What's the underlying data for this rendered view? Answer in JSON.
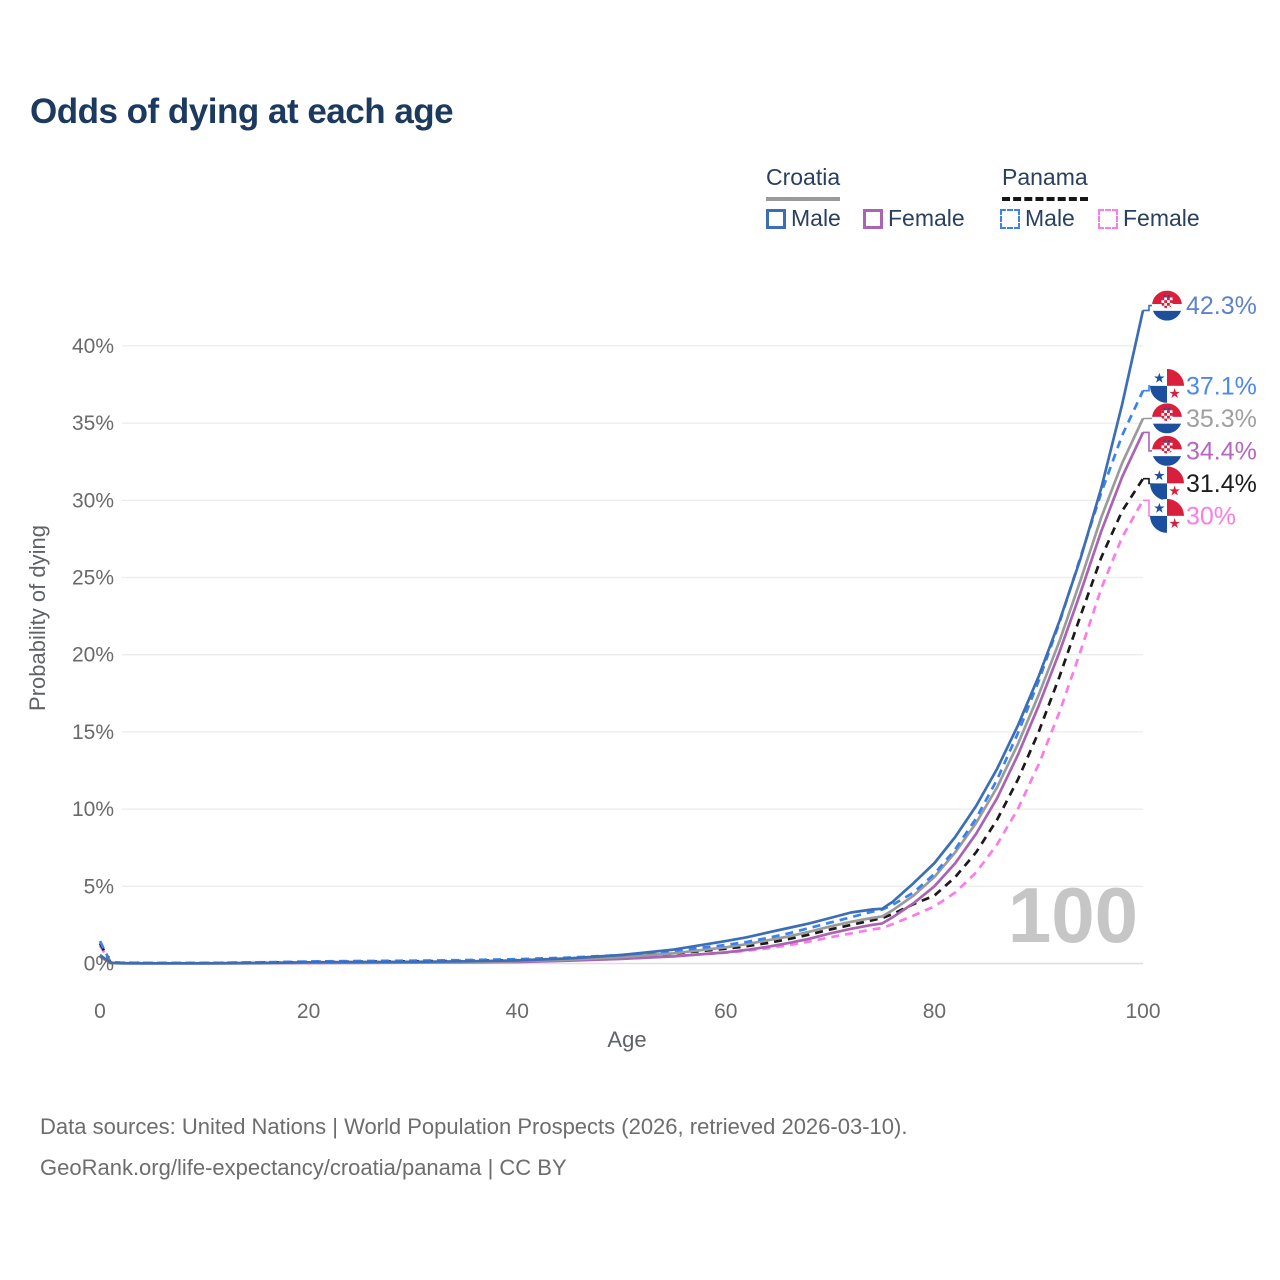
{
  "title": "Odds of dying at each age",
  "legend": {
    "groups": [
      {
        "label": "Croatia",
        "line_style": "solid",
        "line_color": "#9a9a9a"
      },
      {
        "label": "Panama",
        "line_style": "dashed",
        "line_color": "#161616"
      }
    ],
    "items": [
      {
        "label": "Male",
        "country": "Croatia",
        "color": "#3c6eb6",
        "dashed": false
      },
      {
        "label": "Female",
        "country": "Croatia",
        "color": "#a964b3",
        "dashed": false
      },
      {
        "label": "Male",
        "country": "Panama",
        "color": "#3b82ef",
        "dashed": true
      },
      {
        "label": "Female",
        "country": "Panama",
        "color": "#fb7ce8",
        "dashed": true
      }
    ]
  },
  "chart_data": {
    "type": "line",
    "xlabel": "Age",
    "ylabel": "Probability of dying",
    "xlim": [
      0,
      100
    ],
    "ylim": [
      0,
      42.5
    ],
    "grid": "horizontal",
    "legend_position": "top-right",
    "age_cursor_label": "100",
    "x_ticks": [
      0,
      20,
      40,
      60,
      80,
      100
    ],
    "x_tick_labels": [
      "0",
      "20",
      "40",
      "60",
      "80",
      "100"
    ],
    "y_ticks": [
      0,
      5,
      10,
      15,
      20,
      25,
      30,
      35,
      40
    ],
    "y_tick_labels": [
      "0%",
      "5%",
      "10%",
      "15%",
      "20%",
      "25%",
      "30%",
      "35%",
      "40%"
    ],
    "x": [
      0,
      1,
      2,
      5,
      10,
      15,
      20,
      25,
      30,
      35,
      40,
      45,
      50,
      55,
      60,
      62,
      64,
      66,
      68,
      70,
      72,
      74,
      75,
      76,
      78,
      80,
      82,
      84,
      86,
      88,
      90,
      92,
      94,
      96,
      98,
      100
    ],
    "series": [
      {
        "id": "panama-female",
        "country": "Panama",
        "sex": "Female",
        "flag": "pa",
        "color": "#fb7ce8",
        "label_color": "#fb7ce8",
        "dashed": true,
        "end_label": "30%",
        "end_value": 30.0,
        "values": [
          1.15,
          0.08,
          0.035,
          0.02,
          0.02,
          0.05,
          0.08,
          0.09,
          0.1,
          0.12,
          0.16,
          0.22,
          0.32,
          0.48,
          0.7,
          0.82,
          0.98,
          1.18,
          1.42,
          1.7,
          1.95,
          2.2,
          2.3,
          2.55,
          3.1,
          3.7,
          4.6,
          5.9,
          7.7,
          10.0,
          12.9,
          16.3,
          20.2,
          24.3,
          27.6,
          30.0
        ]
      },
      {
        "id": "panama-all",
        "country": "Panama",
        "sex": "All",
        "flag": "pa",
        "color": "#1a1a1a",
        "label_color": "#1c1c1c",
        "dashed": true,
        "end_label": "31.4%",
        "end_value": 31.4,
        "values": [
          1.3,
          0.09,
          0.04,
          0.025,
          0.025,
          0.06,
          0.1,
          0.12,
          0.14,
          0.17,
          0.22,
          0.3,
          0.44,
          0.65,
          0.95,
          1.12,
          1.33,
          1.58,
          1.87,
          2.2,
          2.5,
          2.8,
          2.95,
          3.2,
          3.85,
          4.4,
          5.6,
          7.2,
          9.3,
          11.9,
          15.0,
          18.6,
          22.5,
          26.3,
          29.3,
          31.4
        ]
      },
      {
        "id": "croatia-female",
        "country": "Croatia",
        "sex": "Female",
        "flag": "hr",
        "color": "#a964b3",
        "label_color": "#b767bf",
        "dashed": false,
        "end_label": "34.4%",
        "end_value": 34.4,
        "values": [
          0.45,
          0.03,
          0.01,
          0.008,
          0.008,
          0.015,
          0.03,
          0.04,
          0.05,
          0.07,
          0.1,
          0.18,
          0.3,
          0.46,
          0.72,
          0.88,
          1.08,
          1.32,
          1.6,
          1.95,
          2.25,
          2.5,
          2.6,
          3.0,
          3.9,
          5.0,
          6.5,
          8.4,
          10.7,
          13.5,
          16.7,
          20.2,
          24.0,
          28.0,
          31.5,
          34.4
        ]
      },
      {
        "id": "croatia-all",
        "country": "Croatia",
        "sex": "All",
        "flag": "hr",
        "color": "#9b9b9b",
        "label_color": "#a0a0a0",
        "dashed": false,
        "end_label": "35.3%",
        "end_value": 35.3,
        "values": [
          0.5,
          0.03,
          0.015,
          0.01,
          0.01,
          0.02,
          0.05,
          0.07,
          0.08,
          0.1,
          0.15,
          0.25,
          0.42,
          0.66,
          1.05,
          1.25,
          1.5,
          1.75,
          2.05,
          2.4,
          2.7,
          2.95,
          3.05,
          3.45,
          4.4,
          5.6,
          7.2,
          9.1,
          11.4,
          14.2,
          17.4,
          20.9,
          24.8,
          28.9,
          32.4,
          35.3
        ]
      },
      {
        "id": "panama-male",
        "country": "Panama",
        "sex": "Male",
        "flag": "pa",
        "color": "#3b82ef",
        "label_color": "#4c89ef",
        "dashed": true,
        "end_label": "37.1%",
        "end_value": 37.1,
        "values": [
          1.45,
          0.1,
          0.05,
          0.03,
          0.03,
          0.07,
          0.13,
          0.16,
          0.18,
          0.22,
          0.28,
          0.38,
          0.55,
          0.82,
          1.2,
          1.4,
          1.65,
          1.95,
          2.3,
          2.65,
          3.0,
          3.35,
          3.5,
          3.8,
          4.6,
          5.8,
          7.4,
          9.4,
          11.9,
          14.9,
          18.3,
          22.1,
          26.3,
          30.5,
          34.2,
          37.1
        ]
      },
      {
        "id": "croatia-male",
        "country": "Croatia",
        "sex": "Male",
        "flag": "hr",
        "color": "#3c6eb6",
        "label_color": "#5d83ca",
        "dashed": false,
        "end_label": "42.3%",
        "end_value": 42.3,
        "values": [
          0.55,
          0.04,
          0.02,
          0.01,
          0.01,
          0.03,
          0.08,
          0.1,
          0.11,
          0.14,
          0.2,
          0.33,
          0.55,
          0.9,
          1.45,
          1.7,
          2.0,
          2.3,
          2.6,
          2.95,
          3.3,
          3.5,
          3.55,
          4.0,
          5.2,
          6.5,
          8.2,
          10.2,
          12.6,
          15.4,
          18.6,
          22.2,
          26.2,
          30.8,
          36.2,
          42.3
        ]
      }
    ]
  },
  "footer": {
    "line1": "Data sources: United Nations | World Population Prospects (2026, retrieved 2026-03-10).",
    "line2": "GeoRank.org/life-expectancy/croatia/panama | CC BY"
  },
  "colors": {
    "title": "#1c3a5f",
    "axis_text": "#6a6a6a",
    "gridline": "#ececec",
    "watermark": "#c6c6c6",
    "flag_red": "#da1f3d",
    "flag_blue": "#1d4f9f"
  }
}
